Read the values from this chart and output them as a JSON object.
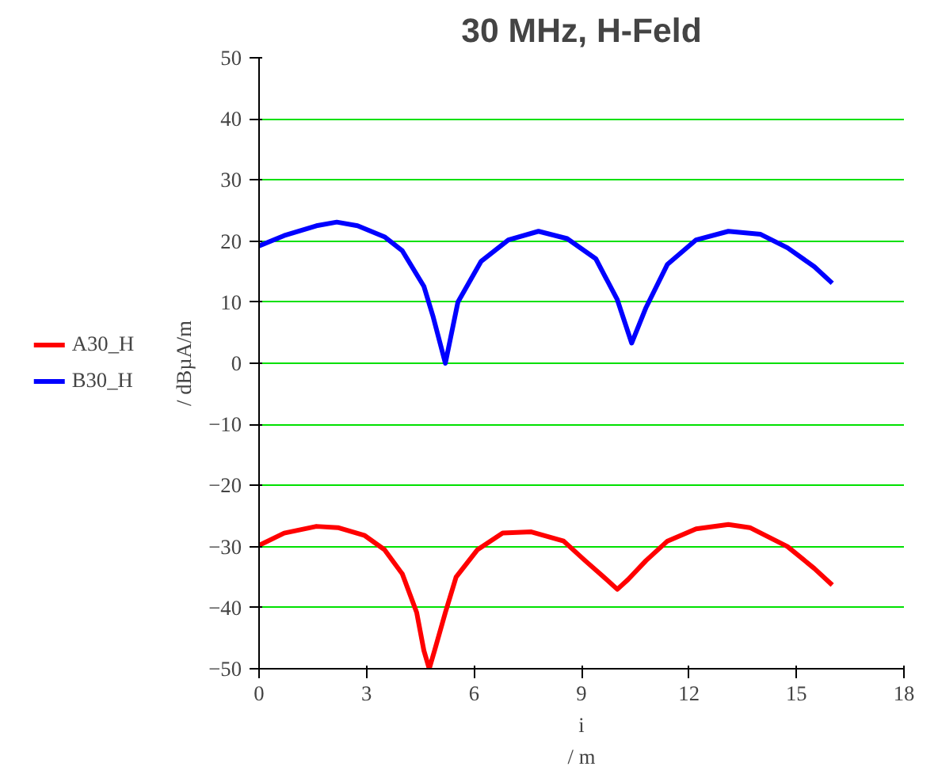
{
  "chart_data": {
    "type": "line",
    "title": "30 MHz, H-Feld",
    "xlabel": "i\n/ m",
    "ylabel": "/ dBµA/m",
    "xlim": [
      0,
      18
    ],
    "xticks": [
      0,
      3,
      6,
      9,
      12,
      15,
      18
    ],
    "ylim": [
      -50,
      50
    ],
    "yticks": [
      -50,
      -40,
      -30,
      -20,
      -10,
      0,
      10,
      20,
      30,
      40,
      50
    ],
    "grid": "y",
    "legend": "left",
    "line_style": "solid",
    "marker": "none",
    "series": [
      {
        "name": "A30_H",
        "color": "#ff0000",
        "x": [
          0,
          0.7,
          1.6,
          2.2,
          2.95,
          3.5,
          4.0,
          4.4,
          4.6,
          4.75,
          4.9,
          5.2,
          5.5,
          6.1,
          6.8,
          7.6,
          8.5,
          9.1,
          9.7,
          10.0,
          10.3,
          10.8,
          11.4,
          12.2,
          13.1,
          13.7,
          14.75,
          15.5,
          16.0
        ],
        "values": [
          -29.8,
          -27.8,
          -26.7,
          -26.9,
          -28.2,
          -30.5,
          -34.5,
          -40.8,
          -47,
          -50,
          -47,
          -40.8,
          -35,
          -30.5,
          -27.8,
          -27.6,
          -29.1,
          -32.3,
          -35.4,
          -37.0,
          -35.4,
          -32.3,
          -29.1,
          -27.1,
          -26.4,
          -26.9,
          -30,
          -33.6,
          -36.3
        ]
      },
      {
        "name": "B30_H",
        "color": "#0000ff",
        "x": [
          0,
          0.7,
          1.6,
          2.17,
          2.75,
          3.5,
          4.0,
          4.6,
          4.85,
          5.2,
          5.55,
          6.2,
          6.96,
          7.8,
          8.6,
          9.4,
          10.0,
          10.4,
          10.8,
          11.4,
          12.2,
          13.1,
          14.0,
          14.75,
          15.5,
          16.0
        ],
        "values": [
          19.2,
          20.9,
          22.5,
          23.1,
          22.5,
          20.7,
          18.4,
          12.6,
          7.8,
          0,
          10,
          16.7,
          20.2,
          21.6,
          20.4,
          17.1,
          10.4,
          3.3,
          9.1,
          16.2,
          20.2,
          21.6,
          21.1,
          18.9,
          15.8,
          13.1
        ]
      }
    ]
  }
}
